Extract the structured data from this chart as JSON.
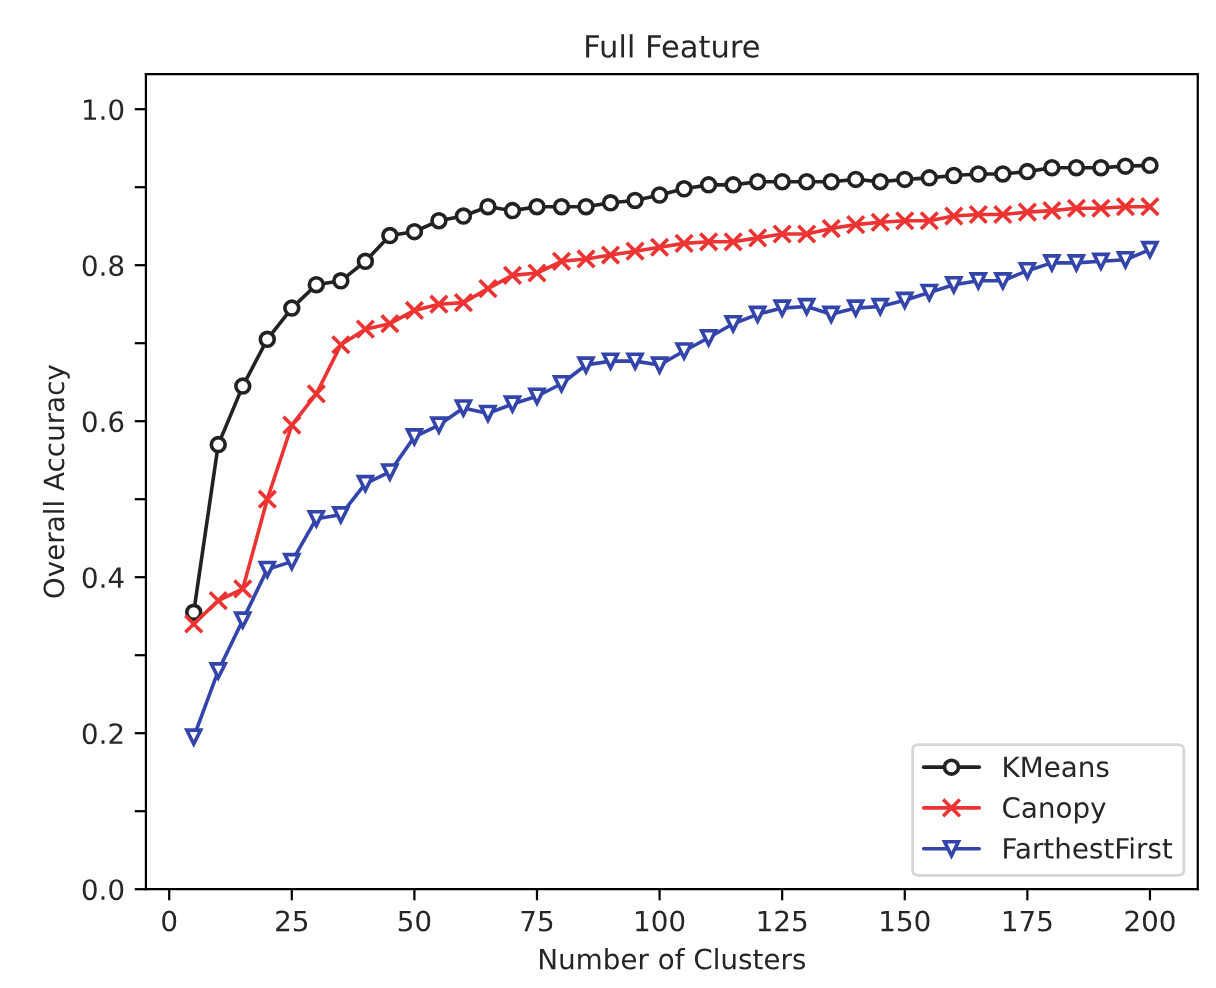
{
  "chart_data": {
    "type": "line",
    "title": "Full Feature",
    "xlabel": "Number of Clusters",
    "ylabel": "Overall Accuracy",
    "x": [
      5,
      10,
      15,
      20,
      25,
      30,
      35,
      40,
      45,
      50,
      55,
      60,
      65,
      70,
      75,
      80,
      85,
      90,
      95,
      100,
      105,
      110,
      115,
      120,
      125,
      130,
      135,
      140,
      145,
      150,
      155,
      160,
      165,
      170,
      175,
      180,
      185,
      190,
      195,
      200
    ],
    "series": [
      {
        "name": "KMeans",
        "color": "#222222",
        "marker": "circle",
        "values": [
          0.355,
          0.57,
          0.645,
          0.705,
          0.745,
          0.775,
          0.78,
          0.805,
          0.838,
          0.843,
          0.857,
          0.863,
          0.875,
          0.87,
          0.875,
          0.875,
          0.875,
          0.88,
          0.883,
          0.89,
          0.898,
          0.903,
          0.903,
          0.907,
          0.907,
          0.907,
          0.907,
          0.91,
          0.907,
          0.91,
          0.912,
          0.915,
          0.917,
          0.917,
          0.92,
          0.925,
          0.925,
          0.925,
          0.927,
          0.928
        ]
      },
      {
        "name": "Canopy",
        "color": "#ee3333",
        "marker": "cross",
        "values": [
          0.34,
          0.37,
          0.385,
          0.5,
          0.595,
          0.635,
          0.698,
          0.718,
          0.725,
          0.742,
          0.75,
          0.752,
          0.77,
          0.787,
          0.79,
          0.805,
          0.808,
          0.813,
          0.818,
          0.823,
          0.828,
          0.83,
          0.83,
          0.835,
          0.84,
          0.84,
          0.847,
          0.852,
          0.855,
          0.857,
          0.857,
          0.863,
          0.865,
          0.865,
          0.868,
          0.87,
          0.873,
          0.873,
          0.875,
          0.875
        ]
      },
      {
        "name": "FarthestFirst",
        "color": "#3344aa",
        "marker": "triangle",
        "values": [
          0.195,
          0.28,
          0.345,
          0.41,
          0.42,
          0.475,
          0.48,
          0.52,
          0.535,
          0.58,
          0.595,
          0.617,
          0.61,
          0.622,
          0.632,
          0.648,
          0.672,
          0.677,
          0.677,
          0.672,
          0.69,
          0.707,
          0.725,
          0.737,
          0.745,
          0.747,
          0.737,
          0.745,
          0.747,
          0.755,
          0.765,
          0.775,
          0.78,
          0.78,
          0.793,
          0.803,
          0.803,
          0.805,
          0.807,
          0.82
        ]
      }
    ],
    "xlim": [
      -4.75,
      209.75
    ],
    "xticks": [
      0,
      25,
      50,
      75,
      100,
      125,
      150,
      175,
      200
    ],
    "ylim": [
      0,
      1.045
    ],
    "yticks": [
      "0.0",
      {
        "value": 0.1,
        "label": null
      },
      0.2,
      {
        "value": 0.3,
        "label": null
      },
      0.4,
      {
        "value": 0.5,
        "label": null
      },
      0.6,
      {
        "value": 0.7,
        "label": null
      },
      0.8,
      {
        "value": 0.9,
        "label": null
      },
      "1.0"
    ],
    "grid": false,
    "legend": "bottom right",
    "line_style": "solid"
  }
}
